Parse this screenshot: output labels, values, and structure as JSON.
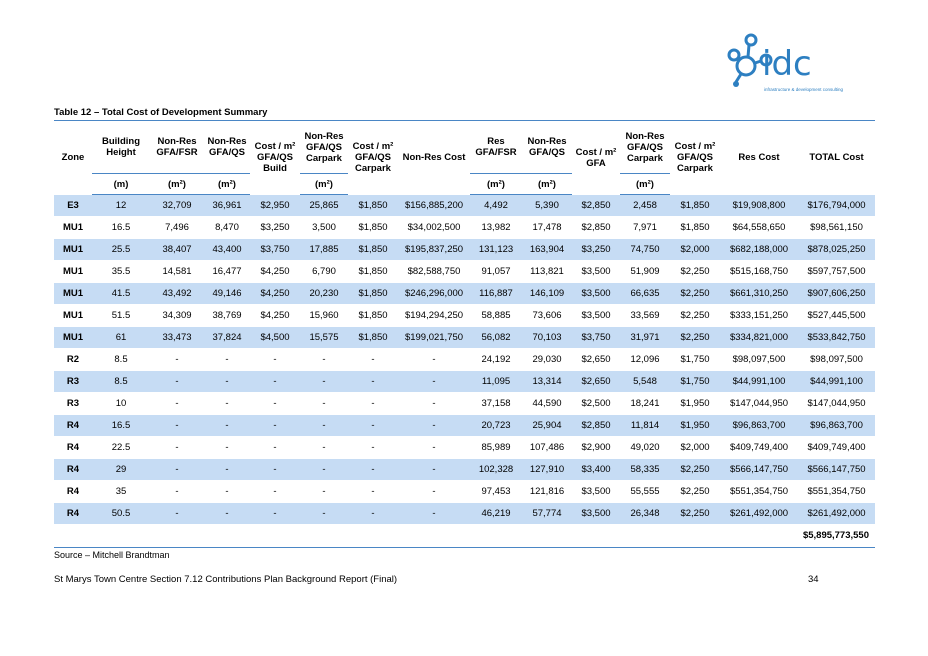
{
  "logo": {
    "text": "idc",
    "sub": "infrastructure & development consulting"
  },
  "table_title": "Table 12 – Total Cost of Development Summary",
  "headers": [
    "Zone",
    "Building Height",
    "Non-Res GFA/FSR",
    "Non-Res GFA/QS",
    "Cost / m² GFA/QS Build",
    "Non-Res GFA/QS Carpark",
    "Cost / m² GFA/QS Carpark",
    "Non-Res Cost",
    "Res GFA/FSR",
    "Non-Res GFA/QS",
    "Cost / m² GFA",
    "Non-Res GFA/QS Carpark",
    "Cost / m² GFA/QS Carpark",
    "Res Cost",
    "TOTAL Cost"
  ],
  "units": {
    "m": "(m)",
    "m2": "(m²)"
  },
  "rows": [
    [
      "E3",
      "12",
      "32,709",
      "36,961",
      "$2,950",
      "25,865",
      "$1,850",
      "$156,885,200",
      "4,492",
      "5,390",
      "$2,850",
      "2,458",
      "$1,850",
      "$19,908,800",
      "$176,794,000"
    ],
    [
      "MU1",
      "16.5",
      "7,496",
      "8,470",
      "$3,250",
      "3,500",
      "$1,850",
      "$34,002,500",
      "13,982",
      "17,478",
      "$2,850",
      "7,971",
      "$1,850",
      "$64,558,650",
      "$98,561,150"
    ],
    [
      "MU1",
      "25.5",
      "38,407",
      "43,400",
      "$3,750",
      "17,885",
      "$1,850",
      "$195,837,250",
      "131,123",
      "163,904",
      "$3,250",
      "74,750",
      "$2,000",
      "$682,188,000",
      "$878,025,250"
    ],
    [
      "MU1",
      "35.5",
      "14,581",
      "16,477",
      "$4,250",
      "6,790",
      "$1,850",
      "$82,588,750",
      "91,057",
      "113,821",
      "$3,500",
      "51,909",
      "$2,250",
      "$515,168,750",
      "$597,757,500"
    ],
    [
      "MU1",
      "41.5",
      "43,492",
      "49,146",
      "$4,250",
      "20,230",
      "$1,850",
      "$246,296,000",
      "116,887",
      "146,109",
      "$3,500",
      "66,635",
      "$2,250",
      "$661,310,250",
      "$907,606,250"
    ],
    [
      "MU1",
      "51.5",
      "34,309",
      "38,769",
      "$4,250",
      "15,960",
      "$1,850",
      "$194,294,250",
      "58,885",
      "73,606",
      "$3,500",
      "33,569",
      "$2,250",
      "$333,151,250",
      "$527,445,500"
    ],
    [
      "MU1",
      "61",
      "33,473",
      "37,824",
      "$4,500",
      "15,575",
      "$1,850",
      "$199,021,750",
      "56,082",
      "70,103",
      "$3,750",
      "31,971",
      "$2,250",
      "$334,821,000",
      "$533,842,750"
    ],
    [
      "R2",
      "8.5",
      "-",
      "-",
      "-",
      "-",
      "-",
      "-",
      "24,192",
      "29,030",
      "$2,650",
      "12,096",
      "$1,750",
      "$98,097,500",
      "$98,097,500"
    ],
    [
      "R3",
      "8.5",
      "-",
      "-",
      "-",
      "-",
      "-",
      "-",
      "11,095",
      "13,314",
      "$2,650",
      "5,548",
      "$1,750",
      "$44,991,100",
      "$44,991,100"
    ],
    [
      "R3",
      "10",
      "-",
      "-",
      "-",
      "-",
      "-",
      "-",
      "37,158",
      "44,590",
      "$2,500",
      "18,241",
      "$1,950",
      "$147,044,950",
      "$147,044,950"
    ],
    [
      "R4",
      "16.5",
      "-",
      "-",
      "-",
      "-",
      "-",
      "-",
      "20,723",
      "25,904",
      "$2,850",
      "11,814",
      "$1,950",
      "$96,863,700",
      "$96,863,700"
    ],
    [
      "R4",
      "22.5",
      "-",
      "-",
      "-",
      "-",
      "-",
      "-",
      "85,989",
      "107,486",
      "$2,900",
      "49,020",
      "$2,000",
      "$409,749,400",
      "$409,749,400"
    ],
    [
      "R4",
      "29",
      "-",
      "-",
      "-",
      "-",
      "-",
      "-",
      "102,328",
      "127,910",
      "$3,400",
      "58,335",
      "$2,250",
      "$566,147,750",
      "$566,147,750"
    ],
    [
      "R4",
      "35",
      "-",
      "-",
      "-",
      "-",
      "-",
      "-",
      "97,453",
      "121,816",
      "$3,500",
      "55,555",
      "$2,250",
      "$551,354,750",
      "$551,354,750"
    ],
    [
      "R4",
      "50.5",
      "-",
      "-",
      "-",
      "-",
      "-",
      "-",
      "46,219",
      "57,774",
      "$3,500",
      "26,348",
      "$2,250",
      "$261,492,000",
      "$261,492,000"
    ]
  ],
  "grand_total": "$5,895,773,550",
  "source": "Source – Mitchell Brandtman",
  "footer": "St Marys Town Centre Section 7.12 Contributions Plan Background Report (Final)",
  "page_number": "34",
  "colors": {
    "band": "#c6dcf4",
    "rule": "#4a86c5",
    "logo": "#2d7fc1"
  }
}
